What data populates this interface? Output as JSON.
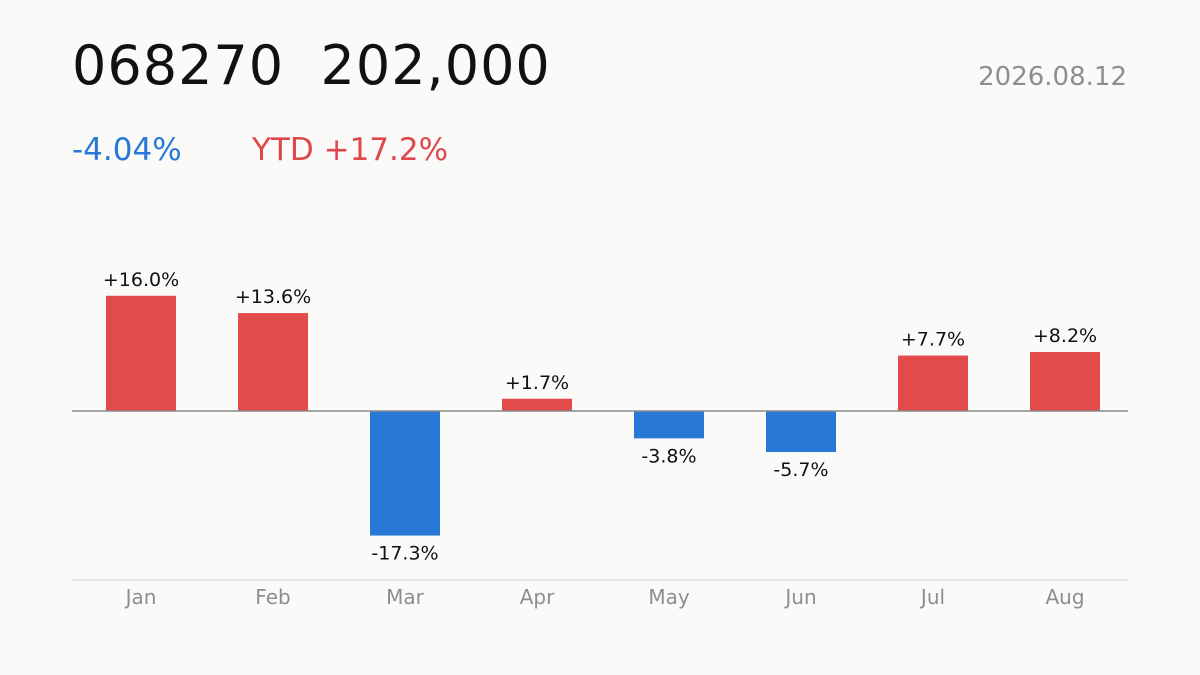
{
  "header": {
    "ticker": "068270",
    "price": "202,000",
    "date": "2026.08.12",
    "change": "-4.04%",
    "ytd": "YTD +17.2%"
  },
  "colors": {
    "up": "#e34a4a",
    "down": "#2878d6",
    "label": "#111111",
    "axis_label": "#8e8e8e",
    "zero_line": "#8a8a8a",
    "baseline": "#dcdcdc"
  },
  "chart_data": {
    "type": "bar",
    "categories": [
      "Jan",
      "Feb",
      "Mar",
      "Apr",
      "May",
      "Jun",
      "Jul",
      "Aug"
    ],
    "values": [
      16.0,
      13.6,
      -17.3,
      1.7,
      -3.8,
      -5.7,
      7.7,
      8.2
    ],
    "labels": [
      "+16.0%",
      "+13.6%",
      "-17.3%",
      "+1.7%",
      "-3.8%",
      "-5.7%",
      "+7.7%",
      "+8.2%"
    ],
    "unit": "%",
    "ylim": [
      -23.3,
      23.3
    ],
    "grid": false
  }
}
